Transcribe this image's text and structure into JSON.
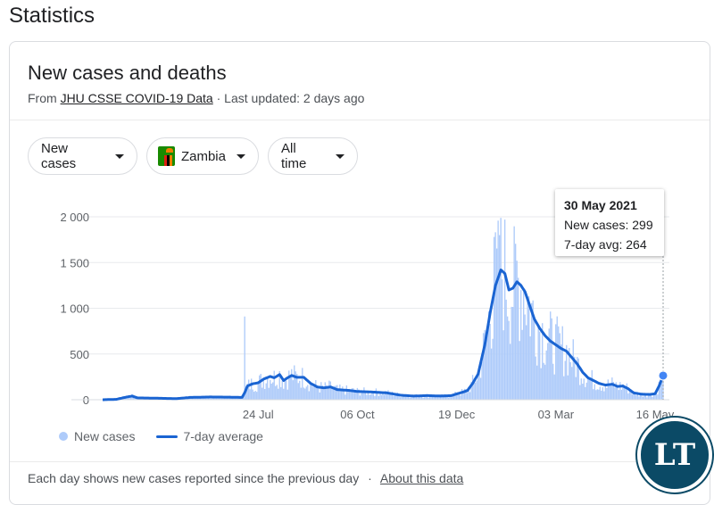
{
  "page": {
    "heading": "Statistics"
  },
  "card": {
    "title": "New cases and deaths",
    "source_prefix": "From",
    "source_link": "JHU CSSE COVID-19 Data",
    "source_suffix": "· Last updated: 2 days ago"
  },
  "filters": {
    "metric": "New cases",
    "country": "Zambia",
    "range": "All time"
  },
  "colors": {
    "bar": "#aecbfa",
    "line": "#1a64d2",
    "flag_green": "#198a00"
  },
  "tooltip": {
    "date": "30 May 2021",
    "new_cases": "New cases: 299",
    "avg": "7-day avg: 264"
  },
  "legend": {
    "bars": "New cases",
    "line": "7-day average"
  },
  "footer": {
    "note": "Each day shows new cases reported since the previous day",
    "sep": "·",
    "link": "About this data"
  },
  "watermark": "LT",
  "chart_data": {
    "type": "bar",
    "ylim": [
      0,
      2000
    ],
    "y_ticks": [
      0,
      500,
      1000,
      1500,
      2000
    ],
    "y_tick_labels": [
      "0",
      "500",
      "1 000",
      "1 500",
      "2 000"
    ],
    "x_tick_labels": [
      "24 Jul",
      "06 Oct",
      "19 Dec",
      "03 Mar",
      "16 May"
    ],
    "x_tick_days": [
      116,
      190,
      264,
      338,
      412
    ],
    "total_days": 418,
    "avg_keys": [
      [
        0,
        0
      ],
      [
        10,
        4
      ],
      [
        18,
        30
      ],
      [
        22,
        40
      ],
      [
        26,
        20
      ],
      [
        35,
        18
      ],
      [
        45,
        15
      ],
      [
        55,
        12
      ],
      [
        65,
        25
      ],
      [
        80,
        30
      ],
      [
        95,
        28
      ],
      [
        104,
        25
      ],
      [
        106,
        80
      ],
      [
        108,
        150
      ],
      [
        112,
        175
      ],
      [
        116,
        185
      ],
      [
        120,
        225
      ],
      [
        125,
        255
      ],
      [
        128,
        240
      ],
      [
        132,
        275
      ],
      [
        135,
        210
      ],
      [
        138,
        240
      ],
      [
        141,
        265
      ],
      [
        145,
        245
      ],
      [
        150,
        245
      ],
      [
        155,
        180
      ],
      [
        160,
        140
      ],
      [
        165,
        130
      ],
      [
        170,
        140
      ],
      [
        175,
        110
      ],
      [
        180,
        105
      ],
      [
        185,
        100
      ],
      [
        190,
        90
      ],
      [
        200,
        85
      ],
      [
        212,
        75
      ],
      [
        222,
        50
      ],
      [
        232,
        40
      ],
      [
        242,
        45
      ],
      [
        252,
        40
      ],
      [
        260,
        45
      ],
      [
        268,
        80
      ],
      [
        272,
        100
      ],
      [
        276,
        180
      ],
      [
        280,
        280
      ],
      [
        285,
        600
      ],
      [
        289,
        950
      ],
      [
        293,
        1250
      ],
      [
        297,
        1420
      ],
      [
        300,
        1380
      ],
      [
        303,
        1200
      ],
      [
        306,
        1220
      ],
      [
        309,
        1290
      ],
      [
        312,
        1250
      ],
      [
        315,
        1180
      ],
      [
        318,
        1050
      ],
      [
        322,
        880
      ],
      [
        326,
        780
      ],
      [
        330,
        700
      ],
      [
        334,
        640
      ],
      [
        338,
        600
      ],
      [
        342,
        560
      ],
      [
        346,
        530
      ],
      [
        350,
        460
      ],
      [
        354,
        390
      ],
      [
        358,
        300
      ],
      [
        362,
        240
      ],
      [
        366,
        210
      ],
      [
        370,
        180
      ],
      [
        375,
        160
      ],
      [
        380,
        170
      ],
      [
        384,
        145
      ],
      [
        388,
        150
      ],
      [
        392,
        120
      ],
      [
        396,
        75
      ],
      [
        402,
        60
      ],
      [
        408,
        58
      ],
      [
        412,
        65
      ],
      [
        415,
        150
      ],
      [
        418,
        264
      ]
    ]
  }
}
